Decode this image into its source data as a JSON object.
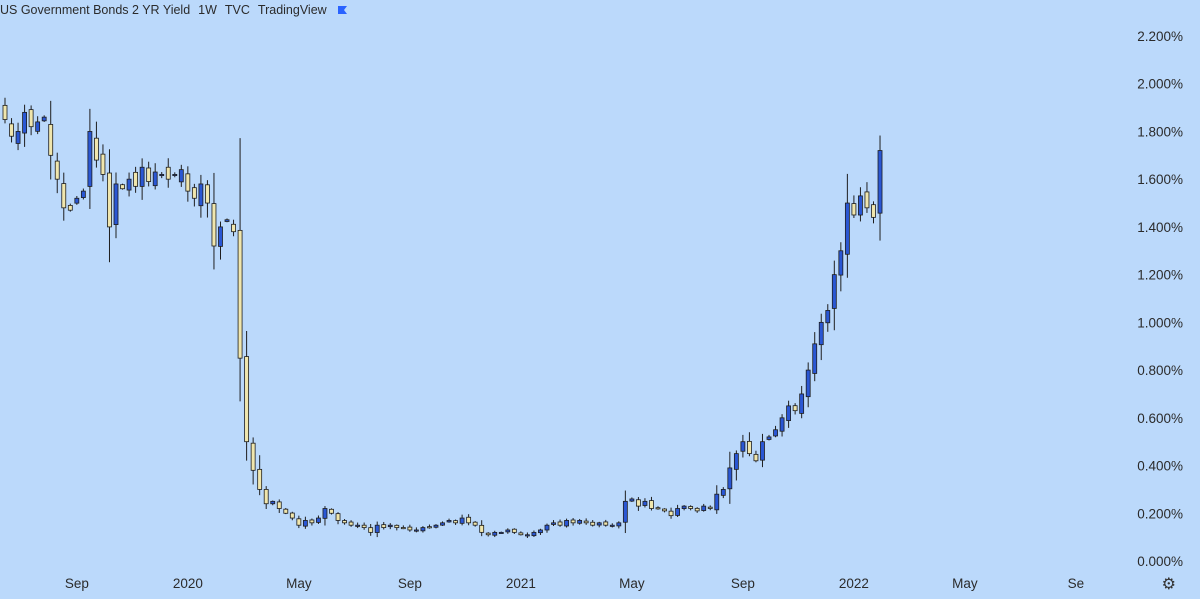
{
  "header": {
    "symbol": "US Government Bonds 2 YR Yield",
    "interval": "1W",
    "source": "TVC",
    "provider": "TradingView",
    "flag_color": "#2962ff"
  },
  "colors": {
    "background": "#bbd9fb",
    "up_body": "#2a57d4",
    "down_body": "#f0e6ad",
    "wick": "#1e1e1e"
  },
  "chart_data": {
    "type": "candlestick",
    "title": "US Government Bonds 2 YR Yield",
    "interval": "1W",
    "y_unit": "%",
    "ylim": [
      0.0,
      2.2
    ],
    "y_ticks": [
      "0.000%",
      "0.200%",
      "0.400%",
      "0.600%",
      "0.800%",
      "1.000%",
      "1.200%",
      "1.400%",
      "1.600%",
      "1.800%",
      "2.000%",
      "2.200%"
    ],
    "x_ticks": [
      {
        "label": "Sep",
        "index": 11
      },
      {
        "label": "2020",
        "index": 28
      },
      {
        "label": "May",
        "index": 45
      },
      {
        "label": "Sep",
        "index": 62
      },
      {
        "label": "2021",
        "index": 79
      },
      {
        "label": "May",
        "index": 96
      },
      {
        "label": "Sep",
        "index": 113
      },
      {
        "label": "2022",
        "index": 130
      },
      {
        "label": "May",
        "index": 147
      },
      {
        "label": "Se",
        "index": 164
      }
    ],
    "closes": [
      1.85,
      1.78,
      1.8,
      1.88,
      1.82,
      1.84,
      1.86,
      1.7,
      1.6,
      1.48,
      1.47,
      1.52,
      1.55,
      1.8,
      1.68,
      1.62,
      1.4,
      1.58,
      1.56,
      1.6,
      1.57,
      1.65,
      1.59,
      1.63,
      1.62,
      1.6,
      1.62,
      1.64,
      1.55,
      1.52,
      1.58,
      1.5,
      1.32,
      1.4,
      1.43,
      1.38,
      0.85,
      0.5,
      0.38,
      0.3,
      0.24,
      0.25,
      0.22,
      0.2,
      0.18,
      0.15,
      0.17,
      0.16,
      0.18,
      0.22,
      0.2,
      0.17,
      0.16,
      0.15,
      0.15,
      0.14,
      0.12,
      0.15,
      0.14,
      0.15,
      0.14,
      0.14,
      0.13,
      0.13,
      0.14,
      0.14,
      0.15,
      0.16,
      0.17,
      0.16,
      0.18,
      0.16,
      0.15,
      0.12,
      0.11,
      0.12,
      0.12,
      0.13,
      0.12,
      0.11,
      0.11,
      0.12,
      0.13,
      0.15,
      0.16,
      0.15,
      0.17,
      0.16,
      0.17,
      0.16,
      0.15,
      0.16,
      0.15,
      0.15,
      0.16,
      0.25,
      0.26,
      0.23,
      0.25,
      0.22,
      0.22,
      0.21,
      0.19,
      0.22,
      0.23,
      0.22,
      0.21,
      0.23,
      0.22,
      0.28,
      0.3,
      0.39,
      0.45,
      0.5,
      0.45,
      0.42,
      0.5,
      0.52,
      0.55,
      0.6,
      0.65,
      0.63,
      0.7,
      0.8,
      0.91,
      1.0,
      1.05,
      1.2,
      1.3,
      1.5,
      1.45,
      1.53,
      1.48,
      1.44,
      1.72
    ],
    "last_close": 1.72
  }
}
